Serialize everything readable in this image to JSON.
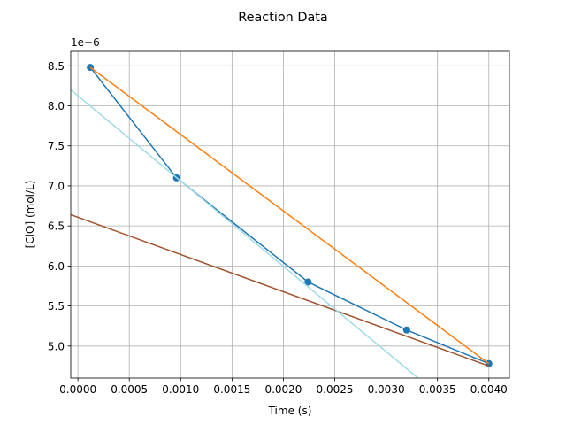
{
  "chart_data": {
    "type": "line",
    "title": "Reaction Data",
    "xlabel": "Time (s)",
    "ylabel": "[ClO] (mol/L)",
    "y_offset_label": "1e−6",
    "xlim": [
      -7e-05,
      0.0042
    ],
    "ylim": [
      4.6e-06,
      8.68e-06
    ],
    "x_ticks": [
      0.0,
      0.0005,
      0.001,
      0.0015,
      0.002,
      0.0025,
      0.003,
      0.0035,
      0.004
    ],
    "x_tick_labels": [
      "0.0000",
      "0.0005",
      "0.0010",
      "0.0015",
      "0.0020",
      "0.0025",
      "0.0030",
      "0.0035",
      "0.0040"
    ],
    "y_ticks": [
      5e-06,
      5.5e-06,
      6e-06,
      6.5e-06,
      7e-06,
      7.5e-06,
      8e-06,
      8.5e-06
    ],
    "y_tick_labels": [
      "5.0",
      "5.5",
      "6.0",
      "6.5",
      "7.0",
      "7.5",
      "8.0",
      "8.5"
    ],
    "grid": true,
    "series": [
      {
        "color": "#1f77b4",
        "marker": "circle",
        "x": [
          0.00012,
          0.00096,
          0.00224,
          0.0032,
          0.004
        ],
        "y": [
          8.48e-06,
          7.1e-06,
          5.8e-06,
          5.2e-06,
          4.78e-06
        ]
      },
      {
        "color": "#ff7f0e",
        "marker": "none",
        "x": [
          0.00012,
          0.004
        ],
        "y": [
          8.48e-06,
          4.78e-06
        ]
      },
      {
        "color": "#a0522d",
        "marker": "none",
        "x": [
          -7e-05,
          0.004
        ],
        "y": [
          6.64e-06,
          4.75e-06
        ]
      },
      {
        "color": "#9fdce6",
        "marker": "none",
        "x": [
          -7e-05,
          0.00331
        ],
        "y": [
          8.2e-06,
          4.6e-06
        ]
      }
    ]
  }
}
